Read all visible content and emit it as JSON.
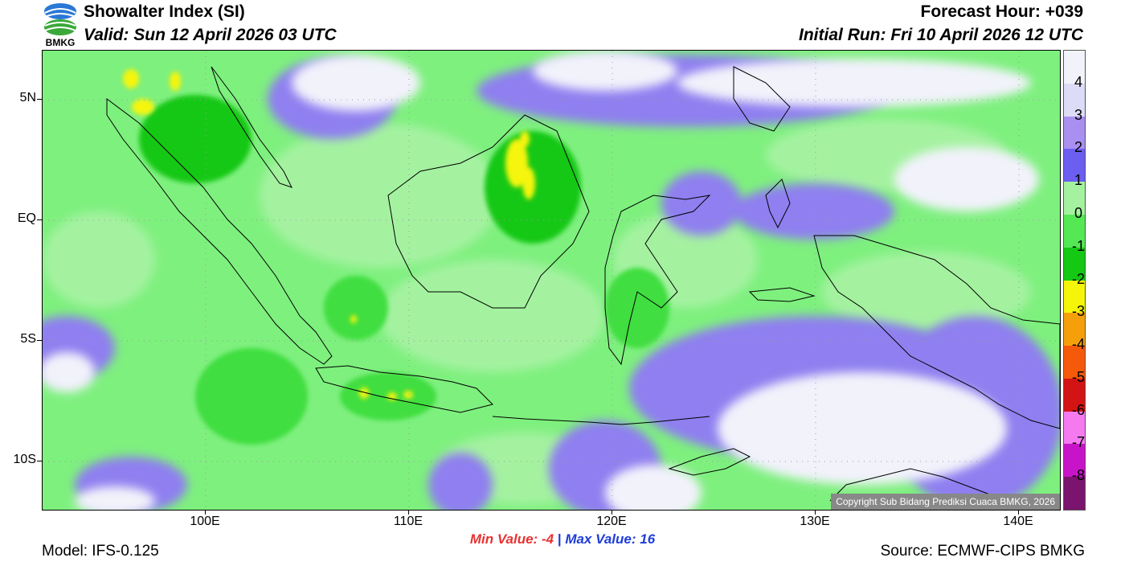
{
  "header": {
    "title": "Showalter Index (SI)",
    "valid": "Valid: Sun 12 April 2026 03 UTC",
    "forecast_hour": "Forecast Hour: +039",
    "initial_run": "Initial Run: Fri 10 April 2026 12 UTC",
    "logo_text": "BMKG"
  },
  "map": {
    "lat_labels": [
      "5N",
      "EQ",
      "5S",
      "10S"
    ],
    "lon_labels": [
      "100E",
      "110E",
      "120E",
      "130E",
      "140E"
    ],
    "copyright": "Copyright Sub Bidang Prediksi Cuaca BMKG, 2026"
  },
  "legend": {
    "labels": [
      "4",
      "3",
      "2",
      "1",
      "0",
      "-1",
      "-2",
      "-3",
      "-4",
      "-5",
      "-6",
      "-7",
      "-8"
    ],
    "colors": [
      "#f2f2fb",
      "#dcdcf7",
      "#a98ff0",
      "#6b5ef0",
      "#a4f2a0",
      "#55e855",
      "#14c814",
      "#f5f50a",
      "#f5a00a",
      "#f55a0a",
      "#d21414",
      "#f57af0",
      "#c814c8",
      "#7a146e"
    ]
  },
  "stats": {
    "min_label": "Min Value:",
    "min_value": "-4",
    "separator": "|",
    "max_label": "Max Value:",
    "max_value": "16"
  },
  "footer": {
    "model": "Model: IFS-0.125",
    "source": "Source: ECMWF-CIPS BMKG"
  }
}
